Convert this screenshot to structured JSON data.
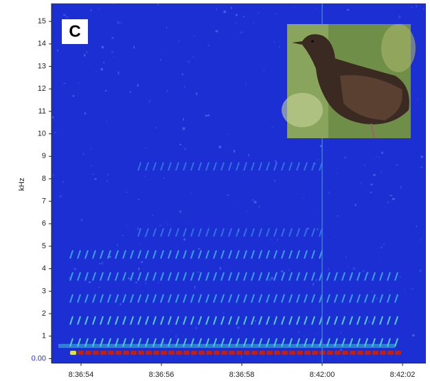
{
  "chart_data": {
    "type": "spectrogram",
    "title": "C",
    "y_label": "kHz",
    "ylim": [
      -0.2,
      15.8
    ],
    "yticks": [
      {
        "value": 0,
        "label": "0.00"
      },
      1,
      2,
      3,
      4,
      5,
      6,
      7,
      8,
      9,
      10,
      11,
      12,
      13,
      14,
      15
    ],
    "categories": [
      "8:36:54",
      "8:36:56",
      "8:36:58",
      "8:42:00",
      "8:42:02"
    ]
  }
}
